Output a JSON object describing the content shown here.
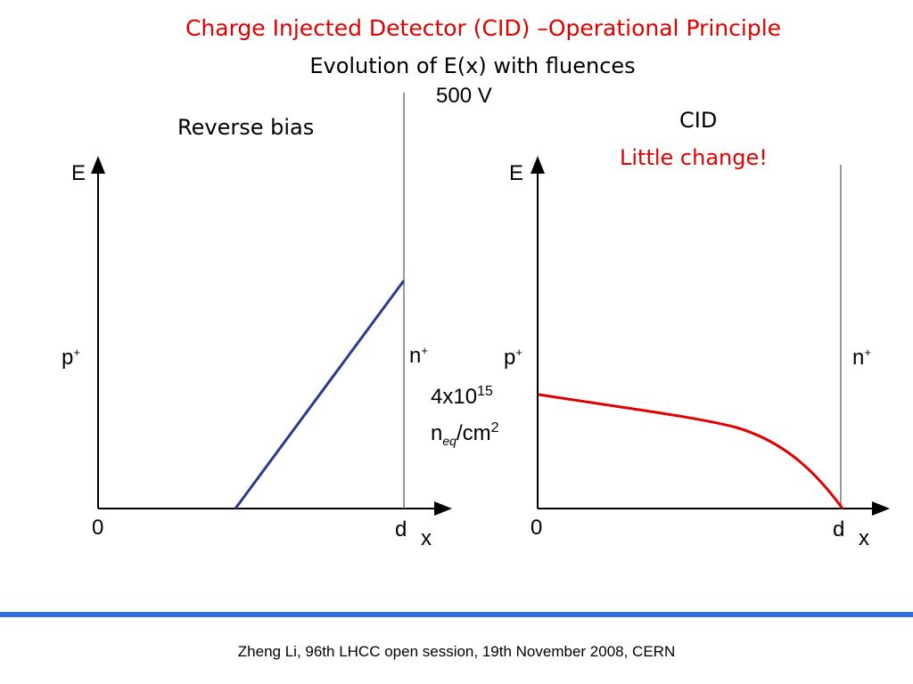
{
  "slide": {
    "title": "Charge Injected Detector (CID) –Operational Principle",
    "subtitle": "Evolution of E(x) with fluences",
    "voltage": "500 V",
    "footer": "Zheng Li, 96th LHCC open session, 19th November 2008, CERN"
  },
  "colors": {
    "title": "#e00000",
    "reverse_bias_line": "#2b3a8f",
    "cid_curve": "#e00000",
    "footer_bar": "#2f6fe0"
  },
  "fluence": {
    "base": "4x10",
    "exponent": "15",
    "unit_prefix": "n",
    "unit_sub": "eq",
    "unit_rest": "/cm",
    "unit_exp": "2"
  },
  "left_panel": {
    "label": "Reverse bias",
    "y_axis": "E",
    "x_axis": "x",
    "origin": "0",
    "d_label": "d",
    "p_label": "p",
    "p_sup": "+",
    "n_label": "n",
    "n_sup": "+"
  },
  "right_panel": {
    "label": "CID",
    "note": "Little change!",
    "y_axis": "E",
    "x_axis": "x",
    "origin": "0",
    "d_label": "d",
    "p_label": "p",
    "p_sup": "+",
    "n_label": "n",
    "n_sup": "+"
  }
}
